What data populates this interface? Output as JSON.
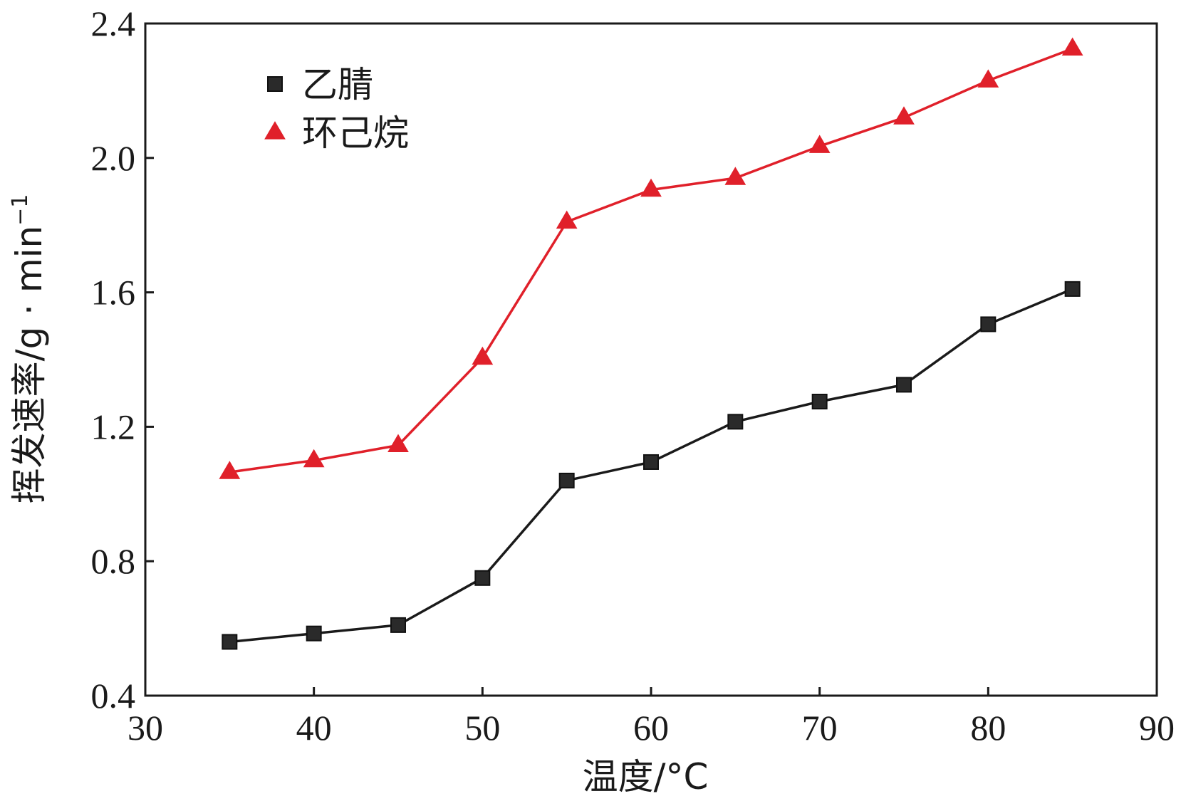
{
  "chart_data": {
    "type": "line",
    "title": "",
    "xlabel": "温度/°C",
    "ylabel": "挥发速率/g · min",
    "ylabel_superscript": "−1",
    "xlim": [
      30,
      90
    ],
    "ylim": [
      0.4,
      2.4
    ],
    "xticks": [
      30,
      40,
      50,
      60,
      70,
      80,
      90
    ],
    "yticks": [
      0.4,
      0.8,
      1.2,
      1.6,
      2.0,
      2.4
    ],
    "xtick_labels": [
      "30",
      "40",
      "50",
      "60",
      "70",
      "80",
      "90"
    ],
    "ytick_labels": [
      "0.4",
      "0.8",
      "1.2",
      "1.6",
      "2.0",
      "2.4"
    ],
    "grid": false,
    "legend_position": "top-left",
    "x": [
      35,
      40,
      45,
      50,
      55,
      60,
      65,
      70,
      75,
      80,
      85
    ],
    "series": [
      {
        "name": "乙腈",
        "marker": "square",
        "color": "#1a1a1a",
        "values": [
          0.56,
          0.585,
          0.61,
          0.75,
          1.04,
          1.095,
          1.215,
          1.275,
          1.325,
          1.505,
          1.61
        ]
      },
      {
        "name": "环己烷",
        "marker": "triangle",
        "color": "#e0202a",
        "values": [
          1.065,
          1.1,
          1.145,
          1.405,
          1.81,
          1.905,
          1.94,
          2.035,
          2.12,
          2.23,
          2.325
        ]
      }
    ]
  }
}
